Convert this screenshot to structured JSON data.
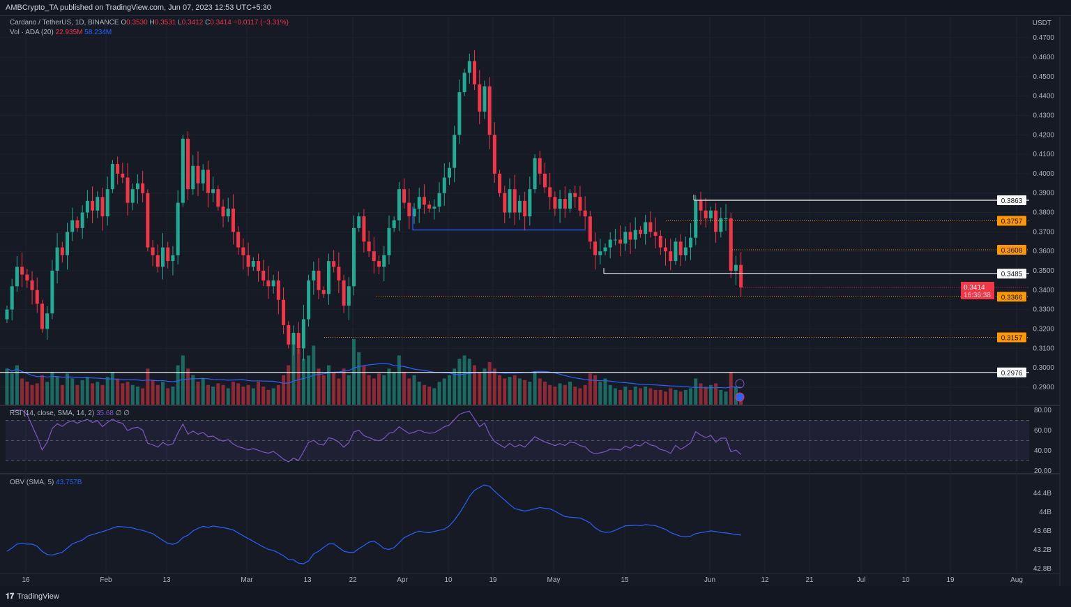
{
  "header": {
    "published": "AMBCrypto_TA published on TradingView.com, Jun 07, 2023 12:53 UTC+5:30"
  },
  "legend": {
    "symbol": "Cardano / TetherUS, 1D, BINANCE",
    "o_label": "O",
    "o": "0.3530",
    "h_label": "H",
    "h": "0.3531",
    "l_label": "L",
    "l": "0.3412",
    "c_label": "C",
    "c": "0.3414",
    "change": "−0.0117 (−3.31%)",
    "vol_label": "Vol · ADA (20)",
    "vol": "22.935M",
    "vol_ma": "58.234M",
    "rsi_label": "RSI (14, close, SMA, 14, 2)",
    "rsi_value": "35.68",
    "rsi_extra": "∅ ∅",
    "obv_label": "OBV (SMA, 5)",
    "obv_value": "43.757B"
  },
  "axis": {
    "currency": "USDT",
    "price_ticks": [
      "0.4700",
      "0.4600",
      "0.4500",
      "0.4400",
      "0.4300",
      "0.4200",
      "0.4100",
      "0.4000",
      "0.3900",
      "0.3800",
      "0.3700",
      "0.3600",
      "0.3500",
      "0.3400",
      "0.3300",
      "0.3200",
      "0.3100",
      "0.3000",
      "0.2900"
    ],
    "rsi_ticks": [
      "80.00",
      "60.00",
      "40.00",
      "20.00"
    ],
    "obv_ticks": [
      "44.4B",
      "44B",
      "43.6B",
      "43.2B",
      "42.8B"
    ],
    "time_ticks": [
      "16",
      "Feb",
      "13",
      "Mar",
      "13",
      "22",
      "Apr",
      "10",
      "19",
      "May",
      "15",
      "Jun",
      "12",
      "21",
      "Jul",
      "10",
      "19",
      "Aug"
    ]
  },
  "levels": [
    {
      "price": 0.3863,
      "label": "0.3863",
      "style": "white"
    },
    {
      "price": 0.3757,
      "label": "0.3757",
      "style": "orange"
    },
    {
      "price": 0.3608,
      "label": "0.3608",
      "style": "orange"
    },
    {
      "price": 0.3485,
      "label": "0.3485",
      "style": "white"
    },
    {
      "price": 0.3366,
      "label": "0.3366",
      "style": "orange"
    },
    {
      "price": 0.3157,
      "label": "0.3157",
      "style": "orange"
    },
    {
      "price": 0.2976,
      "label": "0.2976",
      "style": "white"
    }
  ],
  "current_price": {
    "label": "0.3414",
    "countdown": "16:36:38"
  },
  "colors": {
    "up": "#22ab94",
    "down": "#f23645",
    "orange": "#ff9800",
    "rsi": "#7e57c2",
    "obv": "#2962ff",
    "volma": "#2962ff"
  },
  "footer": {
    "brand": "TradingView"
  },
  "chart_data": {
    "type": "candlestick",
    "start_date": "2023-01-12",
    "end_date": "2023-06-07",
    "close": [
      0.33,
      0.342,
      0.352,
      0.348,
      0.345,
      0.34,
      0.333,
      0.32,
      0.328,
      0.35,
      0.362,
      0.358,
      0.37,
      0.376,
      0.372,
      0.38,
      0.386,
      0.381,
      0.388,
      0.378,
      0.392,
      0.405,
      0.4,
      0.398,
      0.385,
      0.392,
      0.395,
      0.39,
      0.362,
      0.358,
      0.352,
      0.362,
      0.355,
      0.358,
      0.385,
      0.418,
      0.392,
      0.404,
      0.395,
      0.402,
      0.39,
      0.392,
      0.383,
      0.378,
      0.382,
      0.37,
      0.362,
      0.358,
      0.352,
      0.355,
      0.35,
      0.345,
      0.342,
      0.345,
      0.335,
      0.322,
      0.312,
      0.318,
      0.31,
      0.325,
      0.345,
      0.35,
      0.34,
      0.338,
      0.355,
      0.352,
      0.345,
      0.332,
      0.342,
      0.372,
      0.378,
      0.365,
      0.36,
      0.355,
      0.352,
      0.358,
      0.372,
      0.376,
      0.392,
      0.385,
      0.378,
      0.382,
      0.388,
      0.384,
      0.382,
      0.383,
      0.39,
      0.398,
      0.403,
      0.42,
      0.442,
      0.452,
      0.458,
      0.446,
      0.432,
      0.445,
      0.42,
      0.4,
      0.39,
      0.38,
      0.392,
      0.38,
      0.386,
      0.378,
      0.392,
      0.408,
      0.4,
      0.393,
      0.388,
      0.382,
      0.387,
      0.382,
      0.39,
      0.388,
      0.381,
      0.378,
      0.365,
      0.358,
      0.36,
      0.362,
      0.366,
      0.366,
      0.364,
      0.37,
      0.366,
      0.371,
      0.369,
      0.375,
      0.37,
      0.368,
      0.362,
      0.36,
      0.355,
      0.365,
      0.358,
      0.362,
      0.367,
      0.386,
      0.381,
      0.377,
      0.381,
      0.37,
      0.377,
      0.377,
      0.35,
      0.353,
      0.3414
    ],
    "volume_m": [
      110,
      95,
      120,
      80,
      70,
      60,
      65,
      90,
      70,
      100,
      85,
      60,
      95,
      80,
      60,
      75,
      85,
      65,
      70,
      60,
      85,
      100,
      80,
      65,
      70,
      60,
      55,
      50,
      110,
      75,
      60,
      70,
      50,
      55,
      120,
      150,
      110,
      90,
      70,
      80,
      60,
      55,
      65,
      60,
      50,
      70,
      65,
      55,
      60,
      50,
      70,
      55,
      45,
      50,
      60,
      90,
      120,
      200,
      170,
      140,
      150,
      180,
      110,
      90,
      120,
      100,
      80,
      110,
      90,
      200,
      160,
      120,
      90,
      80,
      95,
      90,
      110,
      100,
      150,
      100,
      80,
      90,
      70,
      60,
      55,
      50,
      70,
      80,
      90,
      110,
      140,
      150,
      140,
      120,
      100,
      110,
      130,
      110,
      90,
      80,
      85,
      90,
      80,
      75,
      70,
      100,
      80,
      70,
      60,
      55,
      65,
      60,
      70,
      55,
      50,
      60,
      95,
      90,
      70,
      80,
      60,
      50,
      45,
      55,
      45,
      55,
      50,
      55,
      50,
      45,
      45,
      40,
      50,
      45,
      40,
      45,
      50,
      80,
      65,
      55,
      60,
      65,
      45,
      40,
      100,
      55,
      23
    ],
    "ylim": [
      0.285,
      0.472
    ],
    "rsi_ylim": [
      20,
      80
    ],
    "rsi_bands": [
      70,
      50,
      30
    ]
  }
}
